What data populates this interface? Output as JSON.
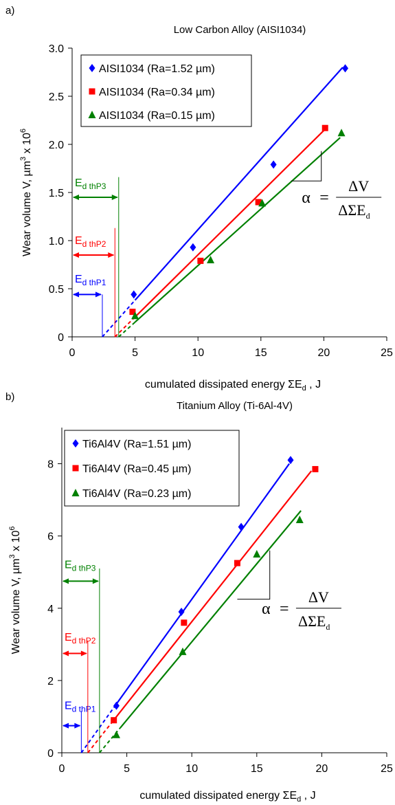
{
  "chart_data": [
    {
      "panel_label": "a)",
      "type": "scatter",
      "title": "Low Carbon Alloy (AISI1034)",
      "xlabel": "cumulated dissipated energy ΣE",
      "xlabel_sub": "d",
      "xlabel_unit": " , J",
      "ylabel": "Wear volume V, µm",
      "ylabel_sup1": "3",
      "ylabel_mid": " x 10",
      "ylabel_sup2": "6",
      "xlim": [
        0,
        25
      ],
      "ylim": [
        0,
        3.0
      ],
      "xticks": [
        0,
        5,
        10,
        15,
        20,
        25
      ],
      "yticks": [
        0,
        0.5,
        1.0,
        1.5,
        2.0,
        2.5,
        3.0
      ],
      "xtick_labels": [
        "0",
        "5",
        "10",
        "15",
        "20",
        "25"
      ],
      "ytick_labels": [
        "0",
        "0.5",
        "1.0",
        "1.5",
        "2.0",
        "2.5",
        "3.0"
      ],
      "legend_position": "top-left",
      "series": [
        {
          "name": "AISI1034 (Ra=1.52 µm)",
          "color": "#0000ff",
          "marker": "diamond",
          "x": [
            4.9,
            9.6,
            16.0,
            21.7
          ],
          "y": [
            0.44,
            0.93,
            1.79,
            2.79
          ],
          "fit": {
            "x_start": 2.4,
            "x_dash_end": 5.0,
            "x_end": 21.5,
            "y_end": 2.8
          }
        },
        {
          "name": "AISI1034 (Ra=0.34 µm)",
          "color": "#ff0000",
          "marker": "square",
          "x": [
            4.8,
            10.2,
            14.8,
            20.1
          ],
          "y": [
            0.26,
            0.79,
            1.4,
            2.17
          ],
          "fit": {
            "x_start": 3.4,
            "x_dash_end": 5.0,
            "x_end": 20.2,
            "y_end": 2.17
          }
        },
        {
          "name": "AISI1034 (Ra=0.15 µm)",
          "color": "#008000",
          "marker": "triangle",
          "x": [
            5.0,
            11.0,
            15.1,
            21.4
          ],
          "y": [
            0.22,
            0.8,
            1.39,
            2.12
          ],
          "fit": {
            "x_start": 3.7,
            "x_dash_end": 5.0,
            "x_end": 21.3,
            "y_end": 2.07
          }
        }
      ],
      "thresholds": [
        {
          "label": "E",
          "sub": "d thP1",
          "color": "#0000ff",
          "x": 2.4,
          "y_arrow": 0.44,
          "y_top": 0.44,
          "y_text": 0.6
        },
        {
          "label": "E",
          "sub": "d thP2",
          "color": "#ff0000",
          "x": 3.4,
          "y_arrow": 0.85,
          "y_top": 1.13,
          "y_text": 1.0
        },
        {
          "label": "E",
          "sub": "d thP3",
          "color": "#008000",
          "x": 3.7,
          "y_arrow": 1.45,
          "y_top": 1.66,
          "y_text": 1.6
        }
      ],
      "slope_triangle": {
        "x0": 17.4,
        "y0": 1.62,
        "x1": 19.8,
        "y1": 1.93
      },
      "formula": {
        "lhs": "α",
        "eq": "=",
        "num": "ΔV",
        "den": "ΔΣE",
        "den_sub": "d",
        "x": 22.5,
        "y": 1.45
      }
    },
    {
      "panel_label": "b)",
      "type": "scatter",
      "title": "Titanium Alloy (Ti-6Al-4V)",
      "xlabel": "cumulated dissipated energy ΣE",
      "xlabel_sub": "d",
      "xlabel_unit": " , J",
      "ylabel": "Wear volume V, µm",
      "ylabel_sup1": "3",
      "ylabel_mid": " x 10",
      "ylabel_sup2": "6",
      "xlim": [
        0,
        25
      ],
      "ylim": [
        0,
        9
      ],
      "xticks": [
        0,
        5,
        10,
        15,
        20,
        25
      ],
      "yticks": [
        0,
        2,
        4,
        6,
        8
      ],
      "xtick_labels": [
        "0",
        "5",
        "10",
        "15",
        "20",
        "25"
      ],
      "ytick_labels": [
        "0",
        "2",
        "4",
        "6",
        "8"
      ],
      "legend_position": "top-left",
      "series": [
        {
          "name": "Ti6Al4V (Ra=1.51 µm)",
          "color": "#0000ff",
          "marker": "diamond",
          "x": [
            4.2,
            9.2,
            13.8,
            17.6
          ],
          "y": [
            1.3,
            3.9,
            6.25,
            8.1
          ],
          "fit": {
            "x_start": 1.5,
            "x_dash_end": 4.0,
            "x_end": 17.5,
            "y_end": 8.0
          }
        },
        {
          "name": "Ti6Al4V (Ra=0.45 µm)",
          "color": "#ff0000",
          "marker": "square",
          "x": [
            4.0,
            9.4,
            13.5,
            19.5
          ],
          "y": [
            0.9,
            3.6,
            5.25,
            7.85
          ],
          "fit": {
            "x_start": 2.0,
            "x_dash_end": 4.0,
            "x_end": 19.2,
            "y_end": 7.8
          }
        },
        {
          "name": "Ti6Al4V (Ra=0.23 µm)",
          "color": "#008000",
          "marker": "triangle",
          "x": [
            4.2,
            9.3,
            15.0,
            18.3
          ],
          "y": [
            0.5,
            2.8,
            5.5,
            6.45
          ],
          "fit": {
            "x_start": 2.9,
            "x_dash_end": 4.5,
            "x_end": 18.4,
            "y_end": 6.7
          }
        }
      ],
      "thresholds": [
        {
          "label": "E",
          "sub": "d thP1",
          "color": "#0000ff",
          "x": 1.5,
          "y_arrow": 0.75,
          "y_top": 1.15,
          "y_text": 1.3
        },
        {
          "label": "E",
          "sub": "d thP2",
          "color": "#ff0000",
          "x": 2.0,
          "y_arrow": 2.75,
          "y_top": 3.1,
          "y_text": 3.2
        },
        {
          "label": "E",
          "sub": "d thP3",
          "color": "#008000",
          "x": 2.9,
          "y_arrow": 4.75,
          "y_top": 5.1,
          "y_text": 5.2
        }
      ],
      "slope_triangle": {
        "x0": 13.5,
        "y0": 4.25,
        "x1": 16.0,
        "y1": 5.6
      },
      "formula": {
        "lhs": "α",
        "eq": "=",
        "num": "ΔV",
        "den": "ΔΣE",
        "den_sub": "d",
        "x": 19.5,
        "y": 4.0
      }
    }
  ]
}
